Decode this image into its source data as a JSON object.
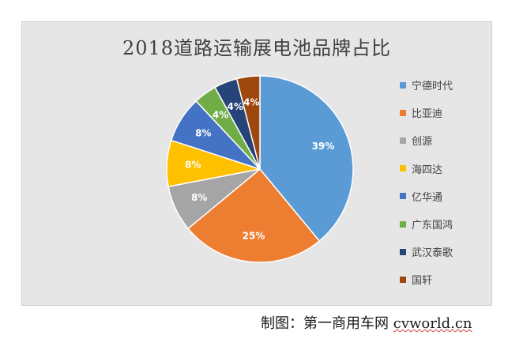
{
  "chart_data": {
    "type": "pie",
    "title": "2018道路运输展电池品牌占比",
    "categories": [
      "宁德时代",
      "比亚迪",
      "创源",
      "海四达",
      "亿华通",
      "广东国鸿",
      "武汉泰歌",
      "国轩"
    ],
    "values": [
      39,
      25,
      8,
      8,
      8,
      4,
      4,
      4
    ],
    "labels": [
      "39%",
      "25%",
      "8%",
      "8%",
      "8%",
      "4%",
      "4%",
      "4%"
    ],
    "colors": [
      "#5b9bd5",
      "#ed7d31",
      "#a5a5a5",
      "#ffc000",
      "#4472c4",
      "#70ad47",
      "#264478",
      "#9e480e"
    ],
    "legend_position": "right"
  },
  "footer": {
    "credit": "制图：第一商用车网 ",
    "site": "cvworld.cn"
  }
}
